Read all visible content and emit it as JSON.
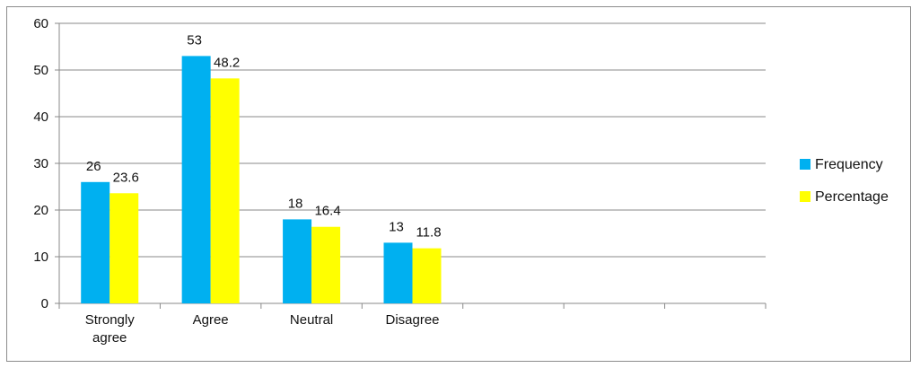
{
  "chart_data": {
    "type": "bar",
    "categories": [
      "Strongly agree",
      "Agree",
      "Neutral",
      "Disagree",
      "",
      "",
      ""
    ],
    "series": [
      {
        "name": "Frequency",
        "values": [
          26,
          53,
          18,
          13,
          null,
          null,
          null
        ],
        "color": "#00b0f0"
      },
      {
        "name": "Percentage",
        "values": [
          23.6,
          48.2,
          16.4,
          11.8,
          null,
          null,
          null
        ],
        "color": "#ffff00"
      }
    ],
    "data_labels": {
      "Frequency": [
        "26",
        "53",
        "18",
        "13"
      ],
      "Percentage": [
        "23.6",
        "48.2",
        "16.4",
        "11.8"
      ]
    },
    "category_labels": [
      [
        "Strongly",
        "agree"
      ],
      [
        "Agree"
      ],
      [
        "Neutral"
      ],
      [
        "Disagree"
      ],
      [],
      [],
      []
    ],
    "yticks": [
      "0",
      "10",
      "20",
      "30",
      "40",
      "50",
      "60"
    ],
    "ylim": [
      0,
      60
    ],
    "title": "",
    "xlabel": "",
    "ylabel": "",
    "grid": true,
    "legend_position": "right"
  }
}
